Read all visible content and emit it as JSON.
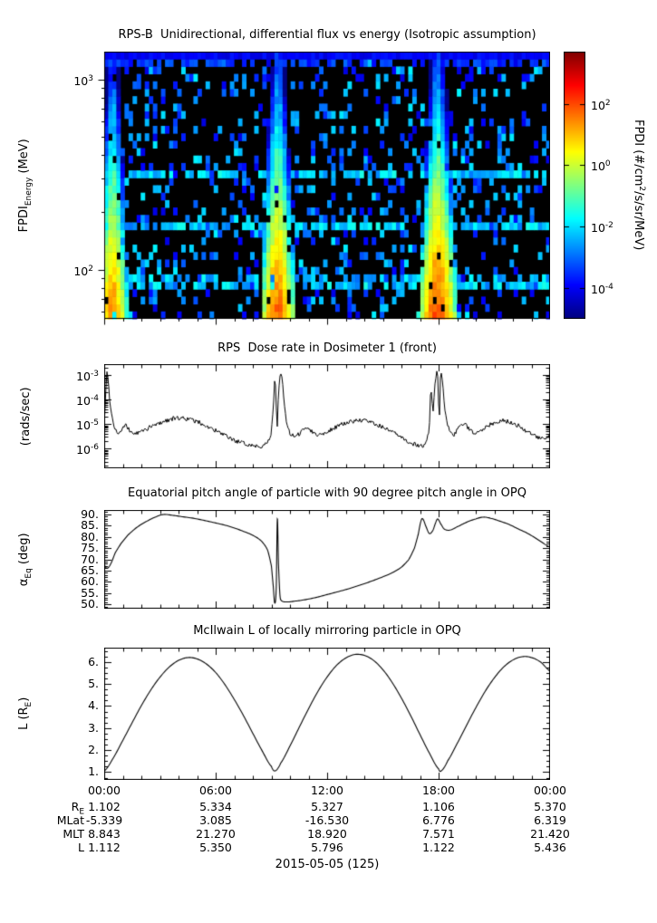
{
  "figure": {
    "date_label": "2015-05-05 (125)"
  },
  "xaxis": {
    "range_hours": [
      0,
      24
    ],
    "tick_labels": [
      "00:00",
      "06:00",
      "12:00",
      "18:00",
      "00:00"
    ],
    "tick_hours": [
      0,
      6,
      12,
      18,
      24
    ]
  },
  "chart_data": [
    {
      "id": "spectrogram",
      "type": "heatmap",
      "title": "RPS-B  Unidirectional, differential flux vs energy (Isotropic assumption)",
      "ylabel_parts": {
        "pre": "FPDI",
        "sub": "Energy",
        "post": " (MeV)"
      },
      "y": {
        "unit": "MeV",
        "scale": "log",
        "log10_range": [
          1.7404,
          3.1461
        ],
        "tick_exponents": [
          3,
          2
        ]
      },
      "colorbar": {
        "label_parts": {
          "pre": "FPDI (#/cm",
          "sup": "2",
          "post": "/s/sr/MeV)"
        },
        "ticks_exp": [
          2,
          0,
          -2,
          -4
        ],
        "clim_log10": [
          -5,
          3.7
        ]
      },
      "heatmap_model": {
        "grid": {
          "nx": 110,
          "ny": 36
        },
        "background": {
          "speckle_probability": 0.2,
          "speckle_log10_range": [
            -4.2,
            -1.8
          ],
          "stripe_row_fraction": 0.16,
          "stripe_log10_range": [
            -2.9,
            -1.5
          ],
          "top_band_log10": -4.0
        },
        "perigee_bands": [
          {
            "center_h": 0.45,
            "half_width_h": 0.85,
            "peak_log10": 1.4
          },
          {
            "center_h": 9.35,
            "half_width_h": 0.95,
            "peak_log10": 1.7
          },
          {
            "center_h": 17.95,
            "half_width_h": 1.05,
            "peak_log10": 1.9
          }
        ]
      }
    },
    {
      "id": "dose",
      "type": "line",
      "title": "RPS  Dose rate in Dosimeter 1 (front)",
      "ylabel_parts": {
        "pre": "(rads/sec)",
        "sub": "",
        "post": ""
      },
      "yscale": "log",
      "ylim_log10": [
        -6.8,
        -2.55
      ],
      "ytick_exponents": [
        -3,
        -4,
        -5,
        -6
      ],
      "noise_log10_floor": 0.09,
      "series": [
        [
          0.0,
          8e-06
        ],
        [
          0.08,
          0.0002
        ],
        [
          0.15,
          0.0015
        ],
        [
          0.22,
          0.0006
        ],
        [
          0.3,
          8e-05
        ],
        [
          0.45,
          1.5e-05
        ],
        [
          0.6,
          6e-06
        ],
        [
          0.8,
          4e-06
        ],
        [
          1.0,
          7e-06
        ],
        [
          1.15,
          9e-06
        ],
        [
          1.4,
          5e-06
        ],
        [
          1.7,
          4e-06
        ],
        [
          2.2,
          6e-06
        ],
        [
          2.7,
          9e-06
        ],
        [
          3.2,
          1.3e-05
        ],
        [
          3.7,
          1.7e-05
        ],
        [
          4.2,
          1.8e-05
        ],
        [
          4.7,
          1.5e-05
        ],
        [
          5.2,
          1.1e-05
        ],
        [
          5.7,
          7e-06
        ],
        [
          6.2,
          4.5e-06
        ],
        [
          6.7,
          2.8e-06
        ],
        [
          7.2,
          1.9e-06
        ],
        [
          7.7,
          1.5e-06
        ],
        [
          8.2,
          1.3e-06
        ],
        [
          8.6,
          1.3e-06
        ],
        [
          8.95,
          2.5e-06
        ],
        [
          9.1,
          4e-05
        ],
        [
          9.18,
          0.0008
        ],
        [
          9.24,
          0.0003
        ],
        [
          9.3,
          3e-06
        ],
        [
          9.38,
          0.0002
        ],
        [
          9.48,
          0.0013
        ],
        [
          9.58,
          0.0008
        ],
        [
          9.68,
          8e-05
        ],
        [
          9.8,
          1.2e-05
        ],
        [
          10.0,
          4e-06
        ],
        [
          10.3,
          2.8e-06
        ],
        [
          10.6,
          5e-06
        ],
        [
          10.9,
          8e-06
        ],
        [
          11.2,
          5e-06
        ],
        [
          11.5,
          3.5e-06
        ],
        [
          12.0,
          5e-06
        ],
        [
          12.5,
          8e-06
        ],
        [
          13.0,
          1.1e-05
        ],
        [
          13.5,
          1.4e-05
        ],
        [
          14.0,
          1.4e-05
        ],
        [
          14.5,
          1.1e-05
        ],
        [
          15.0,
          7.5e-06
        ],
        [
          15.5,
          4.8e-06
        ],
        [
          16.0,
          2.8e-06
        ],
        [
          16.5,
          1.7e-06
        ],
        [
          17.0,
          1.3e-06
        ],
        [
          17.3,
          1.4e-06
        ],
        [
          17.5,
          6e-06
        ],
        [
          17.58,
          0.0004
        ],
        [
          17.63,
          0.00012
        ],
        [
          17.7,
          3e-05
        ],
        [
          17.8,
          0.0004
        ],
        [
          17.9,
          0.0014
        ],
        [
          17.97,
          0.0008
        ],
        [
          18.03,
          5e-06
        ],
        [
          18.1,
          0.0009
        ],
        [
          18.16,
          0.0013
        ],
        [
          18.24,
          0.0003
        ],
        [
          18.35,
          2.5e-05
        ],
        [
          18.55,
          7e-06
        ],
        [
          18.8,
          3.5e-06
        ],
        [
          19.1,
          7e-06
        ],
        [
          19.35,
          1.1e-05
        ],
        [
          19.6,
          7e-06
        ],
        [
          19.9,
          4.5e-06
        ],
        [
          20.3,
          6e-06
        ],
        [
          20.7,
          9e-06
        ],
        [
          21.1,
          1.2e-05
        ],
        [
          21.5,
          1.4e-05
        ],
        [
          21.9,
          1.2e-05
        ],
        [
          22.3,
          8.5e-06
        ],
        [
          22.7,
          5.5e-06
        ],
        [
          23.1,
          3.5e-06
        ],
        [
          23.5,
          2.5e-06
        ],
        [
          23.8,
          2.5e-06
        ],
        [
          24.0,
          3.5e-06
        ]
      ]
    },
    {
      "id": "pitch",
      "type": "line",
      "title": "Equatorial pitch angle of particle with 90 degree pitch angle in OPQ",
      "ylabel_parts": {
        "pre": "α",
        "sub": "Eq",
        "post": " (deg)"
      },
      "ylim": [
        48,
        92
      ],
      "ytick_labels": [
        "90.",
        "85.",
        "80.",
        "75.",
        "70.",
        "65.",
        "60.",
        "55.",
        "50."
      ],
      "series": [
        [
          0,
          67.5
        ],
        [
          0.15,
          66
        ],
        [
          0.35,
          68
        ],
        [
          0.6,
          73
        ],
        [
          0.9,
          77
        ],
        [
          1.3,
          81
        ],
        [
          1.8,
          84.5
        ],
        [
          2.3,
          87
        ],
        [
          2.8,
          89
        ],
        [
          3.2,
          90
        ],
        [
          3.7,
          89.6
        ],
        [
          4.2,
          89
        ],
        [
          4.8,
          88.3
        ],
        [
          5.4,
          87.3
        ],
        [
          6.0,
          86.2
        ],
        [
          6.6,
          85
        ],
        [
          7.2,
          83.4
        ],
        [
          7.8,
          81.5
        ],
        [
          8.2,
          79.8
        ],
        [
          8.5,
          77.8
        ],
        [
          8.8,
          74
        ],
        [
          9.0,
          67
        ],
        [
          9.1,
          58
        ],
        [
          9.18,
          50.5
        ],
        [
          9.26,
          57
        ],
        [
          9.32,
          88
        ],
        [
          9.38,
          68
        ],
        [
          9.46,
          54
        ],
        [
          9.55,
          51.5
        ],
        [
          9.8,
          51
        ],
        [
          10.3,
          51.4
        ],
        [
          10.8,
          52
        ],
        [
          11.4,
          53
        ],
        [
          12.0,
          54.3
        ],
        [
          12.6,
          55.6
        ],
        [
          13.2,
          57
        ],
        [
          13.8,
          58.6
        ],
        [
          14.4,
          60.3
        ],
        [
          15.0,
          62.2
        ],
        [
          15.5,
          64
        ],
        [
          16.0,
          66.5
        ],
        [
          16.4,
          70
        ],
        [
          16.7,
          75
        ],
        [
          16.9,
          81
        ],
        [
          17.05,
          87
        ],
        [
          17.15,
          88
        ],
        [
          17.3,
          85
        ],
        [
          17.5,
          81.5
        ],
        [
          17.7,
          83
        ],
        [
          17.85,
          86.5
        ],
        [
          17.95,
          88
        ],
        [
          18.1,
          86
        ],
        [
          18.3,
          83.5
        ],
        [
          18.6,
          83
        ],
        [
          19.0,
          84.5
        ],
        [
          19.5,
          86.5
        ],
        [
          20.0,
          88
        ],
        [
          20.4,
          88.8
        ],
        [
          20.8,
          88.3
        ],
        [
          21.3,
          87
        ],
        [
          21.8,
          85.5
        ],
        [
          22.3,
          83.5
        ],
        [
          22.8,
          81.5
        ],
        [
          23.4,
          78.5
        ],
        [
          24,
          75.5
        ]
      ]
    },
    {
      "id": "lshell",
      "type": "line",
      "title": "McIlwain L of locally mirroring particle in OPQ",
      "ylabel_parts": {
        "pre": "L (R",
        "sub": "E",
        "post": ")"
      },
      "ylim": [
        0.65,
        6.65
      ],
      "ytick_labels": [
        "6.",
        "5.",
        "4.",
        "3.",
        "2.",
        "1."
      ],
      "series": [
        [
          0,
          1.05
        ],
        [
          0.5,
          1.66
        ],
        [
          1,
          2.44
        ],
        [
          1.5,
          3.24
        ],
        [
          2,
          4.02
        ],
        [
          2.5,
          4.72
        ],
        [
          3,
          5.31
        ],
        [
          3.5,
          5.77
        ],
        [
          4,
          6.07
        ],
        [
          4.5,
          6.2
        ],
        [
          5,
          6.14
        ],
        [
          5.5,
          5.91
        ],
        [
          6,
          5.52
        ],
        [
          6.5,
          4.97
        ],
        [
          7,
          4.3
        ],
        [
          7.5,
          3.56
        ],
        [
          8,
          2.76
        ],
        [
          8.5,
          1.97
        ],
        [
          9,
          1.26
        ],
        [
          9.2,
          1.06
        ],
        [
          9.5,
          1.41
        ],
        [
          10,
          2.19
        ],
        [
          10.5,
          3.04
        ],
        [
          11,
          3.88
        ],
        [
          11.5,
          4.66
        ],
        [
          12,
          5.32
        ],
        [
          12.5,
          5.84
        ],
        [
          13,
          6.18
        ],
        [
          13.5,
          6.34
        ],
        [
          14,
          6.3
        ],
        [
          14.5,
          6.07
        ],
        [
          15,
          5.65
        ],
        [
          15.5,
          5.07
        ],
        [
          16,
          4.36
        ],
        [
          16.5,
          3.56
        ],
        [
          17,
          2.7
        ],
        [
          17.5,
          1.87
        ],
        [
          18,
          1.15
        ],
        [
          18.15,
          1.07
        ],
        [
          18.5,
          1.53
        ],
        [
          19,
          2.3
        ],
        [
          19.5,
          3.12
        ],
        [
          20,
          3.92
        ],
        [
          20.5,
          4.66
        ],
        [
          21,
          5.28
        ],
        [
          21.5,
          5.77
        ],
        [
          22,
          6.09
        ],
        [
          22.5,
          6.24
        ],
        [
          23,
          6.2
        ],
        [
          23.5,
          5.99
        ],
        [
          24,
          5.59
        ]
      ]
    }
  ],
  "ephemeris_table": {
    "rows": [
      {
        "label_pre": "R",
        "label_sub": "E",
        "values": [
          "1.102",
          "5.334",
          "5.327",
          "1.106",
          "5.370"
        ]
      },
      {
        "label_pre": "MLat",
        "label_sub": "",
        "values": [
          "-5.339",
          "3.085",
          "-16.530",
          "6.776",
          "6.319"
        ]
      },
      {
        "label_pre": "MLT",
        "label_sub": "",
        "values": [
          "8.843",
          "21.270",
          "18.920",
          "7.571",
          "21.420"
        ]
      },
      {
        "label_pre": "L",
        "label_sub": "",
        "values": [
          "1.112",
          "5.350",
          "5.796",
          "1.122",
          "5.436"
        ]
      }
    ]
  }
}
